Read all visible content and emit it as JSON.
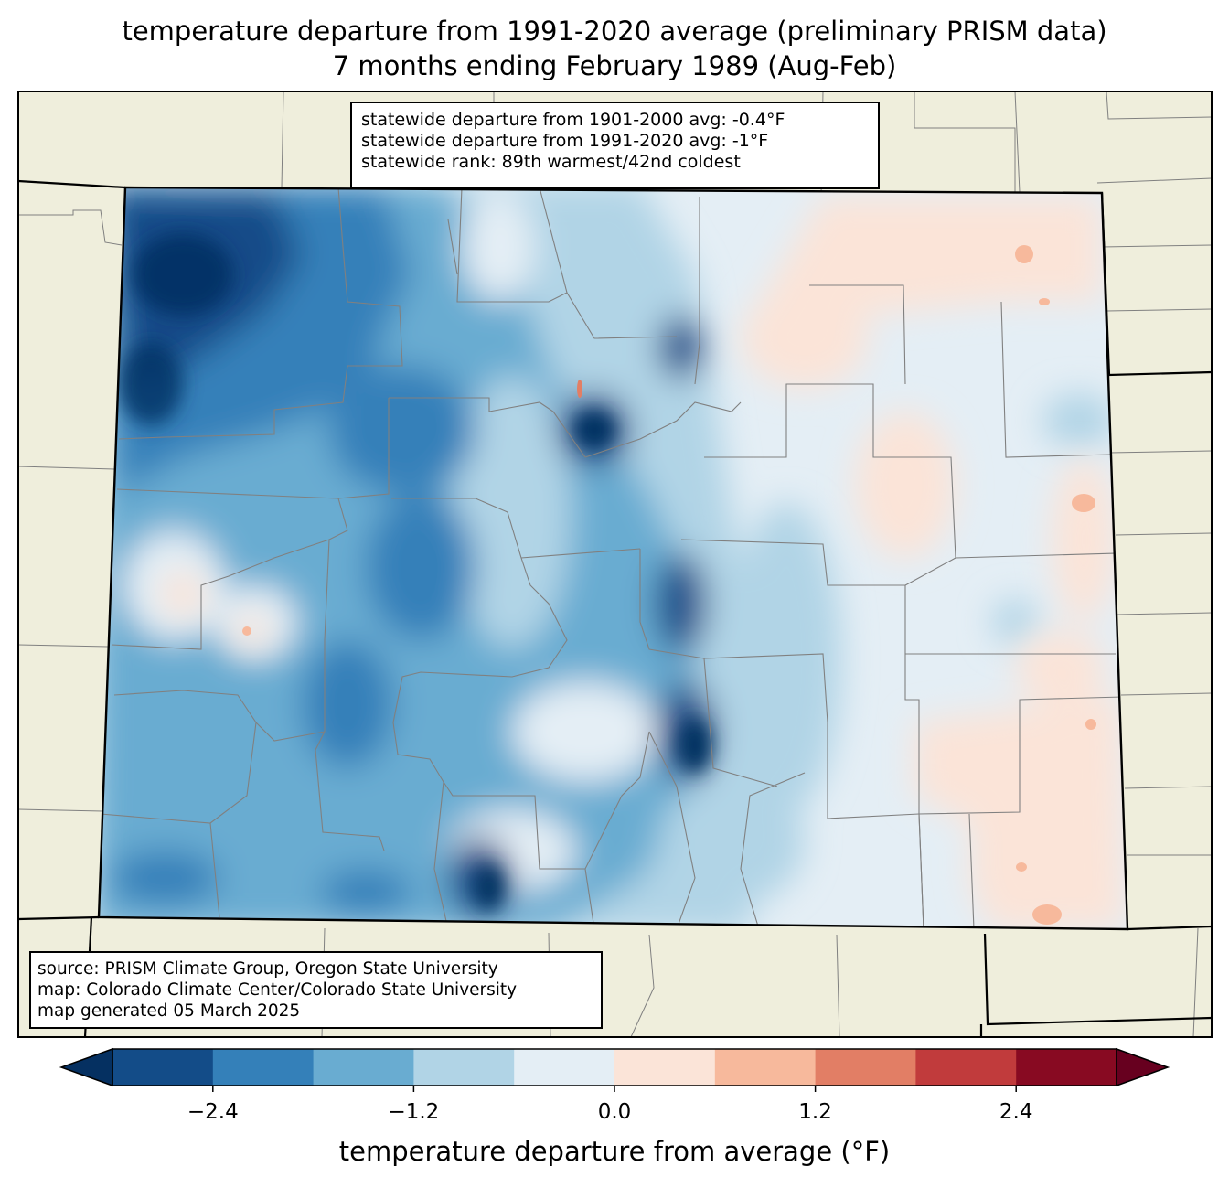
{
  "title": {
    "line1": "temperature departure from 1991-2020 average (preliminary PRISM data)",
    "line2": "7 months ending February 1989 (Aug-Feb)"
  },
  "stats": {
    "line1": "statewide departure from 1901-2000 avg: -0.4°F",
    "line2": "statewide departure from 1991-2020 avg: -1°F",
    "line3": "statewide rank: 89th warmest/42nd coldest"
  },
  "source": {
    "line1": "source: PRISM Climate Group, Oregon State University",
    "line2": "map: Colorado Climate Center/Colorado State University",
    "line3": "map generated 05 March 2025"
  },
  "colorbar": {
    "label": "temperature departure from average (°F)",
    "ticks": [
      "−2.4",
      "−1.2",
      "0.0",
      "1.2",
      "2.4"
    ],
    "tick_values": [
      -2.4,
      -1.2,
      0.0,
      1.2,
      2.4
    ],
    "range": [
      -3.0,
      3.0
    ],
    "bin_width": 0.6,
    "colors": [
      "#053061",
      "#134c88",
      "#3480b9",
      "#69acd1",
      "#b1d4e6",
      "#e4eef5",
      "#fbe4d8",
      "#f7b99c",
      "#e27e65",
      "#c13b3c",
      "#880a22",
      "#67001f"
    ]
  },
  "map_colors": {
    "background": "#efeedc",
    "state_line": "#000000",
    "county_line": "#808080"
  }
}
